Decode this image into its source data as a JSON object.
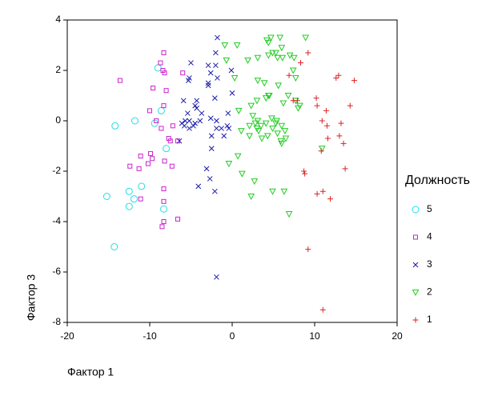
{
  "chart_data": {
    "type": "scatter",
    "x_label": "Фактор 1",
    "y_label": "Фактор 3",
    "legend_title": "Должность",
    "legend_position": "right",
    "grid": false,
    "xlim": [
      -20,
      20
    ],
    "xticks": [
      -20,
      -10,
      0,
      10,
      20
    ],
    "ylim": [
      -8,
      4
    ],
    "yticks": [
      4,
      2,
      0,
      -2,
      -4,
      -6,
      -8
    ],
    "series": [
      {
        "name": "5",
        "color": "#22dde8",
        "marker": "circle",
        "x": [
          -9.0,
          -14.2,
          -11.8,
          -9.4,
          -8.0,
          -8.6,
          -12.5,
          -11.0,
          -12.5,
          -11.9,
          -15.2,
          -14.3,
          -8.3
        ],
        "y": [
          2.1,
          -0.2,
          0.0,
          -0.1,
          -1.1,
          0.4,
          -2.8,
          -2.6,
          -3.4,
          -3.1,
          -3.0,
          -5.0,
          -3.5
        ]
      },
      {
        "name": "4",
        "color": "#cc22cc",
        "marker": "square",
        "x": [
          -13.6,
          -8.3,
          -8.7,
          -8.4,
          -8.2,
          -10.0,
          -8.3,
          -7.2,
          -8.6,
          -7.7,
          -7.5,
          -6.6,
          -7.3,
          -8.2,
          -9.9,
          -9.7,
          -10.2,
          -11.1,
          -12.4,
          -11.3,
          -11.1,
          -8.3,
          -8.3,
          -8.5,
          -8.3,
          -6.6,
          -6.0,
          -9.6,
          -8.0,
          -9.2
        ],
        "y": [
          1.6,
          2.7,
          2.3,
          2.0,
          1.9,
          0.4,
          0.6,
          -0.2,
          -0.3,
          -0.7,
          -0.8,
          -0.8,
          -1.8,
          -1.6,
          -1.3,
          -1.5,
          -1.7,
          -1.4,
          -1.8,
          -1.9,
          -3.1,
          -2.7,
          -3.2,
          -4.2,
          -4.0,
          -3.9,
          1.9,
          1.3,
          1.2,
          0.0
        ]
      },
      {
        "name": "3",
        "color": "#1a1aaa",
        "marker": "x",
        "x": [
          -1.8,
          -2.0,
          -5.0,
          -2.9,
          -5.2,
          -2.6,
          -2.9,
          -2.9,
          -1.8,
          -0.1,
          -5.3,
          -2.1,
          -4.3,
          -4.5,
          -5.9,
          -3.7,
          -4.3,
          -5.4,
          -4.5,
          -5.2,
          -6.1,
          -5.8,
          -6.4,
          -5.2,
          -3.9,
          -2.6,
          -1.9,
          -0.5,
          -0.4,
          -1.3,
          -1.0,
          -1.9,
          -2.5,
          -2.5,
          -3.1,
          -2.7,
          -2.1,
          -4.1,
          -1.9,
          -4.7,
          -5.7,
          -0.6,
          0.0,
          -2.0
        ],
        "y": [
          3.3,
          2.7,
          2.3,
          2.2,
          1.7,
          1.9,
          1.5,
          1.4,
          1.7,
          2.0,
          1.6,
          0.9,
          0.8,
          0.6,
          0.8,
          0.3,
          0.5,
          0.3,
          -0.1,
          0.0,
          -0.1,
          -0.2,
          -0.8,
          -0.3,
          0.0,
          0.1,
          0.0,
          0.3,
          -0.3,
          -0.3,
          -0.6,
          -0.3,
          -0.6,
          -1.1,
          -1.9,
          -2.3,
          -2.8,
          -2.6,
          -6.2,
          -0.2,
          0.0,
          -0.2,
          1.1,
          2.2
        ]
      },
      {
        "name": "2",
        "color": "#22cc22",
        "marker": "triangle-down",
        "x": [
          -0.9,
          0.6,
          4.2,
          4.4,
          4.7,
          5.8,
          8.9,
          3.1,
          4.4,
          4.9,
          5.3,
          5.5,
          6.0,
          7.0,
          6.1,
          7.5,
          1.9,
          -0.7,
          0.3,
          3.1,
          3.9,
          5.6,
          4.4,
          4.1,
          4.5,
          3.0,
          2.3,
          6.2,
          6.8,
          7.7,
          7.7,
          7.4,
          8.2,
          8.0,
          0.8,
          2.5,
          2.8,
          3.1,
          3.5,
          4.1,
          4.8,
          5.3,
          5.4,
          6.0,
          6.4,
          4.9,
          5.5,
          4.3,
          3.2,
          2.1,
          3.0,
          5.9,
          6.5,
          6.0,
          2.1,
          1.1,
          0.7,
          -0.4,
          1.2,
          2.7,
          2.3,
          6.3,
          4.9,
          6.9,
          10.9,
          3.6
        ],
        "y": [
          3.0,
          3.0,
          3.2,
          3.1,
          3.3,
          3.3,
          3.3,
          2.5,
          2.6,
          2.7,
          2.7,
          2.5,
          2.9,
          2.6,
          2.5,
          2.5,
          2.4,
          2.4,
          1.7,
          1.6,
          1.5,
          1.4,
          1.0,
          0.9,
          1.0,
          0.8,
          0.6,
          0.7,
          1.0,
          0.8,
          1.7,
          2.0,
          0.6,
          0.5,
          0.4,
          0.2,
          -0.1,
          0.0,
          -0.2,
          -0.1,
          0.1,
          -0.1,
          0.0,
          -0.2,
          -0.4,
          -0.3,
          -0.5,
          -0.6,
          -0.4,
          -0.2,
          -0.3,
          -0.8,
          -0.7,
          -0.9,
          -0.6,
          -0.4,
          -1.4,
          -1.7,
          -2.1,
          -2.4,
          -3.0,
          -2.8,
          -2.8,
          -3.7,
          -1.1,
          -0.7
        ]
      },
      {
        "name": "1",
        "color": "#dd2222",
        "marker": "plus",
        "x": [
          9.2,
          8.3,
          6.9,
          7.9,
          12.6,
          12.9,
          14.8,
          10.2,
          10.3,
          10.9,
          11.4,
          11.6,
          13.2,
          13.0,
          13.5,
          14.3,
          13.7,
          8.7,
          8.8,
          10.3,
          11.0,
          11.9,
          11.5,
          9.2,
          11.0,
          7.4,
          10.8
        ],
        "y": [
          2.7,
          2.3,
          1.8,
          0.8,
          1.7,
          1.8,
          1.6,
          0.9,
          0.6,
          0.0,
          0.4,
          -0.7,
          -0.1,
          -0.6,
          -0.9,
          0.6,
          -1.9,
          -2.0,
          -2.1,
          -2.9,
          -2.8,
          -3.1,
          -0.2,
          -5.1,
          -7.5,
          0.8,
          -1.2
        ]
      }
    ]
  }
}
